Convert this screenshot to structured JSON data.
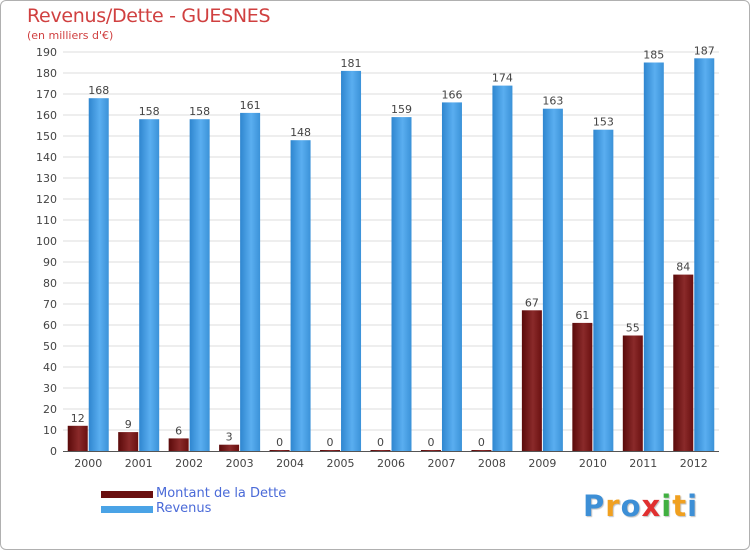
{
  "chart_data": {
    "type": "bar",
    "title": "Revenus/Dette - GUESNES",
    "subtitle": "(en milliers d'€)",
    "categories": [
      "2000",
      "2001",
      "2002",
      "2003",
      "2004",
      "2005",
      "2006",
      "2007",
      "2008",
      "2009",
      "2010",
      "2011",
      "2012"
    ],
    "series": [
      {
        "name": "Montant de la Dette",
        "color": "#7a1a1a",
        "values": [
          12,
          9,
          6,
          3,
          0,
          0,
          0,
          0,
          0,
          67,
          61,
          55,
          84
        ]
      },
      {
        "name": "Revenus",
        "color": "#4aa3e6",
        "values": [
          168,
          158,
          158,
          161,
          148,
          181,
          159,
          166,
          174,
          163,
          153,
          185,
          187
        ]
      }
    ],
    "ylim": [
      0,
      190
    ],
    "y_ticks": [
      0,
      10,
      20,
      30,
      40,
      50,
      60,
      70,
      80,
      90,
      100,
      110,
      120,
      130,
      140,
      150,
      160,
      170,
      180,
      190
    ],
    "grid": true,
    "legend_position": "bottom-left"
  },
  "brand": {
    "letters": [
      "P",
      "r",
      "o",
      "x",
      "i",
      "t",
      "i"
    ],
    "colors": [
      "#3d8fd6",
      "#f0a020",
      "#3d8fd6",
      "#e03030",
      "#40b040",
      "#f0a020",
      "#3d8fd6"
    ]
  }
}
